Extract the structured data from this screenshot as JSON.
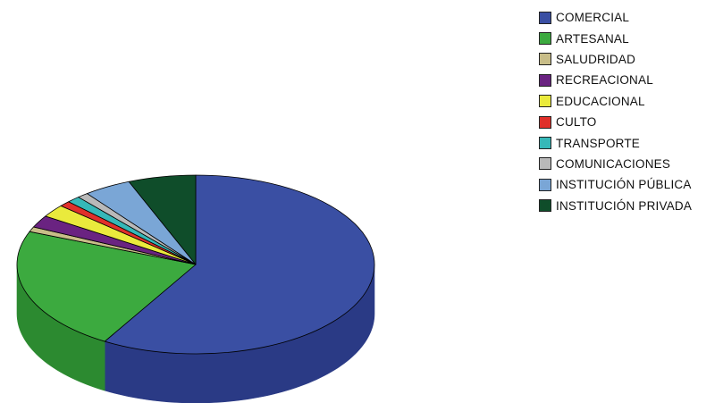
{
  "chart_data": {
    "type": "pie",
    "title": "",
    "legend_position": "top-right",
    "style": "3d",
    "series": [
      {
        "label": "COMERCIAL",
        "value": 58.5,
        "color": "#3a4fa3",
        "side_color": "#2a3a85"
      },
      {
        "label": "ARTESANAL",
        "value": 22.5,
        "color": "#3caa3f",
        "side_color": "#2c8a30"
      },
      {
        "label": "SALUDRIDAD",
        "value": 0.9,
        "color": "#c8bd88",
        "side_color": "#a89d68"
      },
      {
        "label": "RECREACIONAL",
        "value": 2.2,
        "color": "#6a2381",
        "side_color": "#521a66"
      },
      {
        "label": "EDUCACIONAL",
        "value": 2.3,
        "color": "#eaea3c",
        "side_color": "#c4c422"
      },
      {
        "label": "CULTO",
        "value": 1.0,
        "color": "#e0302a",
        "side_color": "#b8201c"
      },
      {
        "label": "TRANSPORTE",
        "value": 1.2,
        "color": "#36b8b8",
        "side_color": "#259696"
      },
      {
        "label": "COMUNICACIONES",
        "value": 1.0,
        "color": "#b9b9b9",
        "side_color": "#979797"
      },
      {
        "label": "INSTITUCIÓN PÚBLICA",
        "value": 4.3,
        "color": "#7aa6d6",
        "side_color": "#5c86b6"
      },
      {
        "label": "INSTITUCIÓN PRIVADA",
        "value": 6.1,
        "color": "#0f4d2a",
        "side_color": "#0a3a1f"
      }
    ]
  }
}
